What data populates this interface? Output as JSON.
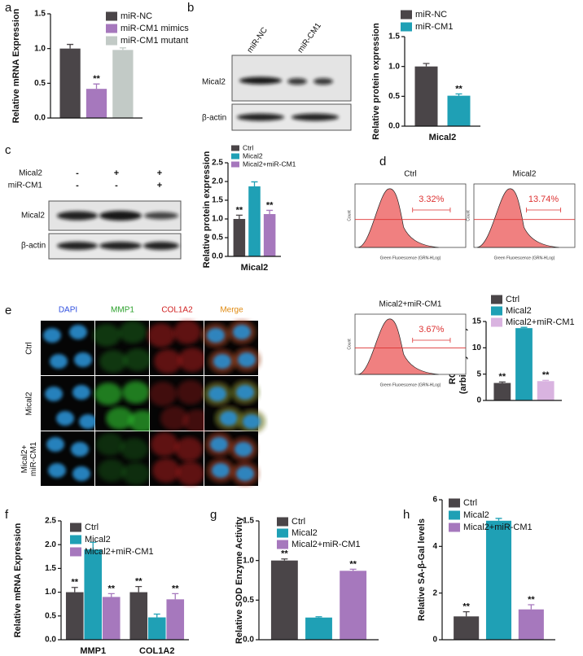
{
  "chart_data": [
    {
      "type": "bar",
      "panel": "a",
      "ylabel": "Relative mRNA Expression",
      "categories": [
        null
      ],
      "ylim": [
        0,
        1.5
      ],
      "yticks": [
        {
          "value": 0,
          "label": "0.0"
        },
        0.5,
        {
          "value": 1,
          "label": "1.0"
        },
        1.5
      ],
      "series": [
        {
          "name": "miR-NC",
          "color": "#4a4548",
          "values": [
            1.0
          ],
          "errors": [
            0.06
          ],
          "annotations": [
            null
          ]
        },
        {
          "name": "miR-CM1 mimics",
          "color": "#a678bd",
          "values": [
            0.42
          ],
          "errors": [
            0.07
          ],
          "annotations": [
            "**"
          ]
        },
        {
          "name": "miR-CM1 mutant",
          "color": "#c2cac6",
          "values": [
            0.98
          ],
          "errors": [
            0.03
          ],
          "annotations": [
            null
          ]
        }
      ]
    },
    {
      "type": "bar",
      "panel": "b",
      "ylabel": "Relative protein expression",
      "categories": [
        "Mical2"
      ],
      "ylim": [
        0,
        1.5
      ],
      "yticks": [
        {
          "value": 0,
          "label": "0.0"
        },
        0.5,
        {
          "value": 1,
          "label": "1.0"
        },
        1.5
      ],
      "series": [
        {
          "name": "miR-NC",
          "color": "#4a4548",
          "values": [
            1.0
          ],
          "errors": [
            0.05
          ],
          "annotations": [
            null
          ]
        },
        {
          "name": "miR-CM1",
          "color": "#1fa0b5",
          "values": [
            0.51
          ],
          "errors": [
            0.03
          ],
          "annotations": [
            "**"
          ]
        }
      ]
    },
    {
      "type": "bar",
      "panel": "c",
      "ylabel": "Relative protein expression",
      "categories": [
        "Mical2"
      ],
      "ylim": [
        0,
        2.5
      ],
      "yticks": [
        {
          "value": 0,
          "label": "0.0"
        },
        0.5,
        {
          "value": 1,
          "label": "1.0"
        },
        1.5,
        {
          "value": 2,
          "label": "2.0"
        },
        2.5
      ],
      "series": [
        {
          "name": "Ctrl",
          "color": "#4a4548",
          "values": [
            1.0
          ],
          "errors": [
            0.1
          ],
          "annotations": [
            "**"
          ]
        },
        {
          "name": "Mical2",
          "color": "#1fa0b5",
          "values": [
            1.87
          ],
          "errors": [
            0.12
          ],
          "annotations": [
            null
          ]
        },
        {
          "name": "Mical2+miR-CM1",
          "color": "#a678bd",
          "values": [
            1.13
          ],
          "errors": [
            0.1
          ],
          "annotations": [
            "**"
          ]
        }
      ]
    },
    {
      "type": "bar",
      "panel": "d",
      "ylabel": [
        "ROS levels",
        "(arbitrary units)"
      ],
      "categories": [
        null
      ],
      "ylim": [
        0,
        15
      ],
      "yticks": [
        0,
        5,
        10,
        15
      ],
      "series": [
        {
          "name": "Ctrl",
          "color": "#4a4548",
          "values": [
            3.32
          ],
          "errors": [
            0.2
          ],
          "annotations": [
            "**"
          ]
        },
        {
          "name": "Mical2",
          "color": "#1fa0b5",
          "values": [
            13.74
          ],
          "errors": [
            0.15
          ],
          "annotations": [
            null
          ]
        },
        {
          "name": "Mical2+miR-CM1",
          "color": "#d9b3e0",
          "values": [
            3.67
          ],
          "errors": [
            0.15
          ],
          "annotations": [
            "**"
          ]
        }
      ]
    },
    {
      "type": "bar",
      "panel": "f",
      "ylabel": "Relative mRNA Expression",
      "categories": [
        "MMP1",
        "COL1A2"
      ],
      "ylim": [
        0,
        2.5
      ],
      "yticks": [
        {
          "value": 0,
          "label": "0.0"
        },
        0.5,
        {
          "value": 1,
          "label": "1.0"
        },
        1.5,
        {
          "value": 2,
          "label": "2.0"
        },
        2.5
      ],
      "series": [
        {
          "name": "Ctrl",
          "color": "#4a4548",
          "values": [
            1.0,
            1.0
          ],
          "errors": [
            0.1,
            0.12
          ],
          "annotations": [
            "**",
            "**"
          ]
        },
        {
          "name": "Mical2",
          "color": "#1fa0b5",
          "values": [
            1.9,
            0.47
          ],
          "errors": [
            0.15,
            0.07
          ],
          "annotations": [
            null,
            null
          ]
        },
        {
          "name": "Mical2+miR-CM1",
          "color": "#a678bd",
          "values": [
            0.9,
            0.85
          ],
          "errors": [
            0.07,
            0.12
          ],
          "annotations": [
            "**",
            "**"
          ]
        }
      ]
    },
    {
      "type": "bar",
      "panel": "g",
      "ylabel": "Relative SOD Enzyme Activity",
      "categories": [
        null
      ],
      "ylim": [
        0,
        1.5
      ],
      "yticks": [
        {
          "value": 0,
          "label": "0.0"
        },
        0.5,
        {
          "value": 1,
          "label": "1.0"
        },
        1.5
      ],
      "series": [
        {
          "name": "Ctrl",
          "color": "#4a4548",
          "values": [
            1.0
          ],
          "errors": [
            0.02
          ],
          "annotations": [
            "**"
          ]
        },
        {
          "name": "Mical2",
          "color": "#1fa0b5",
          "values": [
            0.28
          ],
          "errors": [
            0.01
          ],
          "annotations": [
            null
          ]
        },
        {
          "name": "Mical2+miR-CM1",
          "color": "#a678bd",
          "values": [
            0.87
          ],
          "errors": [
            0.02
          ],
          "annotations": [
            "**"
          ]
        }
      ]
    },
    {
      "type": "bar",
      "panel": "h",
      "ylabel": "Relative SA-β-Gal levels",
      "categories": [
        null
      ],
      "ylim": [
        0,
        6
      ],
      "yticks": [
        0,
        2,
        4,
        6
      ],
      "series": [
        {
          "name": "Ctrl",
          "color": "#4a4548",
          "values": [
            1.0
          ],
          "errors": [
            0.2
          ],
          "annotations": [
            "**"
          ]
        },
        {
          "name": "Mical2",
          "color": "#1fa0b5",
          "values": [
            5.1
          ],
          "errors": [
            0.1
          ],
          "annotations": [
            null
          ]
        },
        {
          "name": "Mical2+miR-CM1",
          "color": "#a678bd",
          "values": [
            1.3
          ],
          "errors": [
            0.2
          ],
          "annotations": [
            "**"
          ]
        }
      ]
    }
  ],
  "blots": [
    {
      "lanes": [
        "miR-NC",
        "miR-CM1"
      ],
      "rows": [
        "Mical2",
        "β-actin"
      ]
    },
    {
      "conditions": [
        {
          "label": "Mical2",
          "signs": [
            "-",
            "+",
            "+"
          ]
        },
        {
          "label": "miR-CM1",
          "signs": [
            "-",
            "-",
            "+"
          ]
        }
      ],
      "rows": [
        "Mical2",
        "β-actin"
      ]
    }
  ],
  "flow": [
    {
      "title": "Ctrl",
      "gate_label": "3.32%",
      "xlabel": "Green Fluorescence (GRN-HLog)",
      "ylabel": "Count"
    },
    {
      "title": "Mical2",
      "gate_label": "13.74%",
      "xlabel": "Green Fluorescence (GRN-HLog)",
      "ylabel": "Count"
    },
    {
      "title": "Mical2+miR-CM1",
      "gate_label": "3.67%",
      "xlabel": "Green Fluorescence (GRN-HLog)",
      "ylabel": "Count"
    }
  ],
  "microscopy": {
    "panel": "e",
    "columns": [
      "DAPI",
      "MMP1",
      "COL1A2",
      "Merge"
    ],
    "rows": [
      [
        "Ctrl"
      ],
      [
        "Mical2"
      ],
      [
        "Mical2+",
        "miR-CM1"
      ]
    ]
  }
}
